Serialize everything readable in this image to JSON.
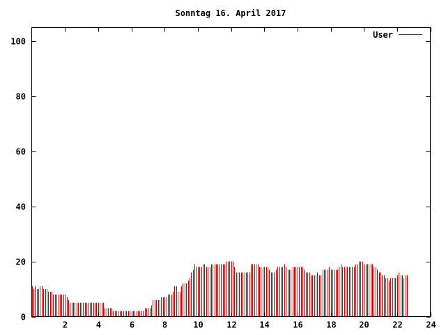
{
  "chart_data": {
    "type": "bar",
    "title": "Sonntag 16. April 2017",
    "xlabel": "",
    "ylabel": "",
    "xlim": [
      0,
      24
    ],
    "ylim": [
      0,
      105
    ],
    "x_ticks": [
      2,
      4,
      6,
      8,
      10,
      12,
      14,
      16,
      18,
      20,
      22,
      24
    ],
    "y_ticks": [
      0,
      20,
      40,
      60,
      80,
      100
    ],
    "grid": false,
    "legend_position": "top-right",
    "series": [
      {
        "name": "User",
        "color": "#cc0000",
        "interval_hours": 0.1,
        "values": [
          11,
          10,
          11,
          10,
          10,
          11,
          11,
          10,
          10,
          10,
          9,
          9,
          9,
          8,
          8,
          8,
          8,
          8,
          8,
          8,
          8,
          7,
          6,
          5,
          5,
          5,
          5,
          5,
          5,
          5,
          5,
          5,
          5,
          5,
          5,
          5,
          5,
          5,
          5,
          5,
          5,
          5,
          5,
          5,
          3,
          3,
          3,
          3,
          3,
          2,
          2,
          2,
          2,
          2,
          2,
          2,
          2,
          2,
          2,
          2,
          2,
          2,
          2,
          2,
          2,
          2,
          2,
          2,
          3,
          3,
          3,
          3,
          4,
          6,
          6,
          6,
          6,
          6,
          7,
          7,
          7,
          7,
          8,
          8,
          8,
          9,
          11,
          11,
          9,
          9,
          11,
          12,
          12,
          12,
          13,
          14,
          16,
          17,
          19,
          18,
          18,
          18,
          18,
          19,
          19,
          18,
          18,
          18,
          19,
          19,
          19,
          19,
          19,
          19,
          19,
          19,
          19,
          20,
          20,
          20,
          20,
          20,
          18,
          16,
          16,
          16,
          16,
          16,
          16,
          16,
          16,
          16,
          19,
          19,
          19,
          19,
          19,
          18,
          18,
          18,
          18,
          18,
          18,
          17,
          16,
          16,
          16,
          17,
          18,
          18,
          18,
          18,
          19,
          18,
          17,
          17,
          17,
          18,
          18,
          18,
          18,
          18,
          18,
          18,
          17,
          16,
          16,
          16,
          15,
          15,
          15,
          15,
          16,
          15,
          15,
          17,
          17,
          17,
          17,
          18,
          17,
          17,
          17,
          17,
          17,
          18,
          19,
          18,
          18,
          18,
          18,
          18,
          18,
          18,
          18,
          19,
          19,
          20,
          20,
          20,
          19,
          19,
          19,
          19,
          19,
          19,
          18,
          18,
          17,
          16,
          16,
          15,
          15,
          14,
          14,
          13,
          14,
          14,
          14,
          14,
          15,
          16,
          15,
          15,
          14,
          15,
          15
        ]
      }
    ]
  }
}
